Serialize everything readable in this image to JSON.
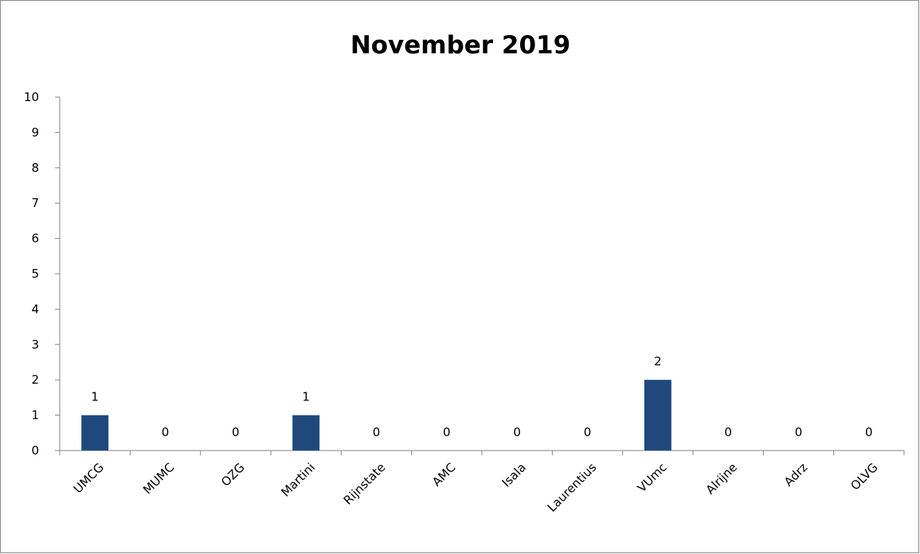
{
  "chart_data": {
    "type": "bar",
    "title": "November 2019",
    "categories": [
      "UMCG",
      "MUMC",
      "OZG",
      "Martini",
      "Rijnstate",
      "AMC",
      "Isala",
      "Laurentius",
      "VUmc",
      "Alrijne",
      "Adrz",
      "OLVG"
    ],
    "values": [
      1,
      0,
      0,
      1,
      0,
      0,
      0,
      0,
      2,
      0,
      0,
      0
    ],
    "ylim": [
      0,
      10
    ],
    "yticks": [
      0,
      1,
      2,
      3,
      4,
      5,
      6,
      7,
      8,
      9,
      10
    ],
    "xlabel": "",
    "ylabel": "",
    "grid": false,
    "legend": "none",
    "bar_color": "#1f497d",
    "data_labels": true
  }
}
